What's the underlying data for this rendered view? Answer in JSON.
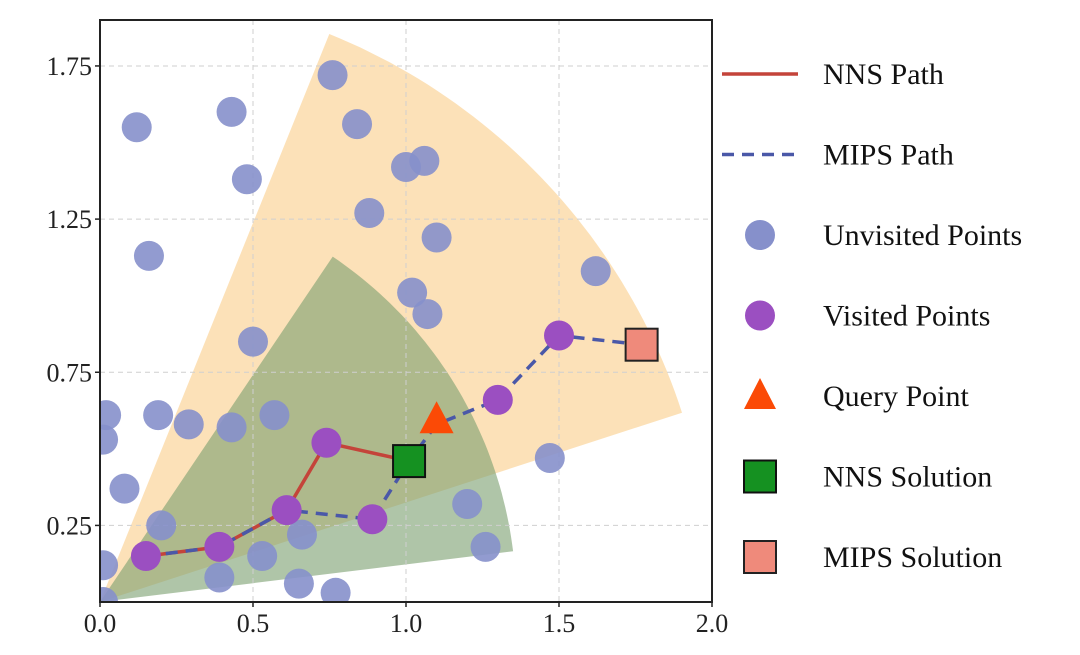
{
  "chart_data": {
    "type": "scatter",
    "title": "",
    "xlabel": "",
    "ylabel": "",
    "xlim": [
      0.0,
      2.0
    ],
    "ylim": [
      0.0,
      1.9
    ],
    "x_ticks": [
      {
        "value": 0.0,
        "label": "0.0"
      },
      {
        "value": 0.5,
        "label": "0.5"
      },
      {
        "value": 1.0,
        "label": "1.0"
      },
      {
        "value": 1.5,
        "label": "1.5"
      },
      {
        "value": 2.0,
        "label": "2.0"
      }
    ],
    "y_ticks": [
      {
        "value": 0.25,
        "label": "0.25"
      },
      {
        "value": 0.75,
        "label": "0.75"
      },
      {
        "value": 1.25,
        "label": "1.25"
      },
      {
        "value": 1.75,
        "label": "1.75"
      }
    ],
    "grid": true,
    "regions": [
      {
        "name": "MIPS search cone",
        "color": "#fcdcab",
        "opacity": 0.85,
        "radius": 2.0,
        "angle_start_deg": 18,
        "angle_end_deg": 68
      },
      {
        "name": "NNS search cone",
        "color": "#7a9e6e",
        "opacity": 0.6,
        "radius": 1.36,
        "angle_start_deg": 7,
        "angle_end_deg": 56
      }
    ],
    "unvisited_points": [
      [
        0.12,
        1.55
      ],
      [
        0.43,
        1.6
      ],
      [
        0.48,
        1.38
      ],
      [
        0.16,
        1.13
      ],
      [
        0.76,
        1.72
      ],
      [
        0.84,
        1.56
      ],
      [
        1.0,
        1.42
      ],
      [
        1.06,
        1.44
      ],
      [
        0.88,
        1.27
      ],
      [
        1.1,
        1.19
      ],
      [
        1.02,
        1.01
      ],
      [
        1.07,
        0.94
      ],
      [
        0.5,
        0.85
      ],
      [
        1.62,
        1.08
      ],
      [
        0.02,
        0.61
      ],
      [
        0.01,
        0.53
      ],
      [
        0.19,
        0.61
      ],
      [
        0.29,
        0.58
      ],
      [
        0.43,
        0.57
      ],
      [
        0.57,
        0.61
      ],
      [
        0.08,
        0.37
      ],
      [
        0.2,
        0.25
      ],
      [
        0.66,
        0.22
      ],
      [
        0.53,
        0.15
      ],
      [
        1.2,
        0.32
      ],
      [
        1.26,
        0.18
      ],
      [
        1.47,
        0.47
      ],
      [
        0.01,
        0.12
      ],
      [
        0.39,
        0.08
      ],
      [
        0.65,
        0.06
      ],
      [
        0.77,
        0.03
      ],
      [
        0.01,
        0.0
      ]
    ],
    "visited_points": [
      [
        0.15,
        0.15
      ],
      [
        0.39,
        0.18
      ],
      [
        0.61,
        0.3
      ],
      [
        0.74,
        0.52
      ],
      [
        0.89,
        0.27
      ],
      [
        1.3,
        0.66
      ],
      [
        1.5,
        0.87
      ]
    ],
    "nns_path": [
      [
        0.15,
        0.15
      ],
      [
        0.39,
        0.18
      ],
      [
        0.61,
        0.3
      ],
      [
        0.74,
        0.52
      ],
      [
        1.01,
        0.46
      ]
    ],
    "mips_path": [
      [
        0.15,
        0.15
      ],
      [
        0.39,
        0.18
      ],
      [
        0.61,
        0.3
      ],
      [
        0.89,
        0.27
      ],
      [
        1.01,
        0.46
      ],
      [
        1.1,
        0.58
      ],
      [
        1.3,
        0.66
      ],
      [
        1.5,
        0.87
      ],
      [
        1.77,
        0.84
      ]
    ],
    "query_point": [
      1.1,
      0.59
    ],
    "nns_solution": [
      1.01,
      0.46
    ],
    "mips_solution": [
      1.77,
      0.84
    ],
    "colors": {
      "unvisited": "#8690cb",
      "visited": "#9b4fc1",
      "nns_path": "#c4443a",
      "mips_path": "#4a58a8",
      "query": "#fb4a06",
      "nns_solution": "#159121",
      "mips_solution": "#ef8a7b"
    },
    "legend": [
      {
        "label": "NNS Path",
        "marker": "solid-line"
      },
      {
        "label": "MIPS Path",
        "marker": "dashed-line"
      },
      {
        "label": "Unvisited Points",
        "marker": "circle-unvisited"
      },
      {
        "label": "Visited Points",
        "marker": "circle-visited"
      },
      {
        "label": "Query Point",
        "marker": "triangle"
      },
      {
        "label": "NNS Solution",
        "marker": "square-green"
      },
      {
        "label": "MIPS Solution",
        "marker": "square-salmon"
      }
    ],
    "legend_position": "right"
  }
}
